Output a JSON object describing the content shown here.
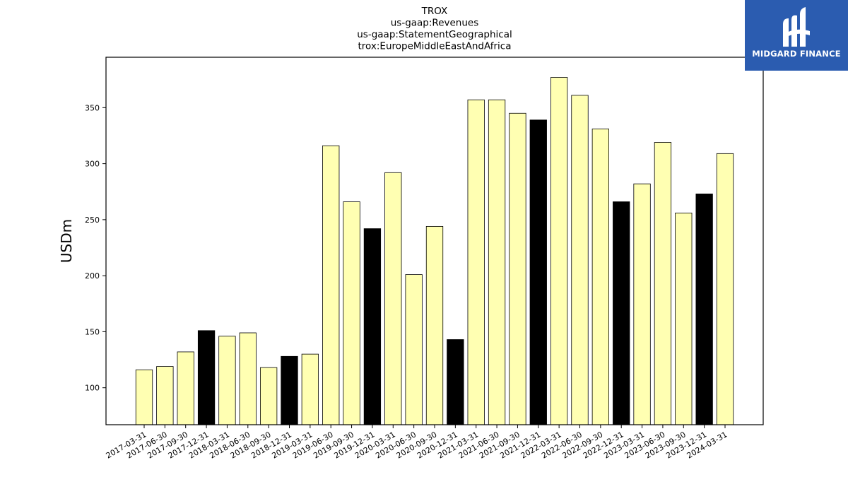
{
  "logo": {
    "text": "MIDGARD FINANCE",
    "background": "#2b5cb0",
    "icon": "midgard-logo-mark-icon"
  },
  "chart_data": {
    "type": "bar",
    "title_lines": [
      "TROX",
      "us-gaap:Revenues",
      "us-gaap:StatementGeographical",
      "trox:EuropeMiddleEastAndAfrica"
    ],
    "xlabel": "",
    "ylabel": "USDm",
    "ylim": [
      67,
      395
    ],
    "yticks": [
      100,
      150,
      200,
      250,
      300,
      350
    ],
    "grid": false,
    "colors": {
      "regular": "#ffffb2",
      "year_end": "#000000",
      "edge": "#000000"
    },
    "categories": [
      "2017-03-31",
      "2017-06-30",
      "2017-09-30",
      "2017-12-31",
      "2018-03-31",
      "2018-06-30",
      "2018-09-30",
      "2018-12-31",
      "2019-03-31",
      "2019-06-30",
      "2019-09-30",
      "2019-12-31",
      "2020-03-31",
      "2020-06-30",
      "2020-09-30",
      "2020-12-31",
      "2021-03-31",
      "2021-06-30",
      "2021-09-30",
      "2021-12-31",
      "2022-03-31",
      "2022-06-30",
      "2022-09-30",
      "2022-12-31",
      "2023-03-31",
      "2023-06-30",
      "2023-09-30",
      "2023-12-31",
      "2024-03-31"
    ],
    "values": [
      116,
      119,
      132,
      151,
      146,
      149,
      118,
      128,
      130,
      316,
      266,
      242,
      292,
      201,
      244,
      143,
      357,
      357,
      345,
      339,
      377,
      361,
      331,
      266,
      282,
      319,
      256,
      273,
      309
    ]
  }
}
